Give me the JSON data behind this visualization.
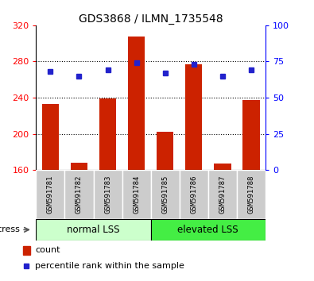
{
  "title": "GDS3868 / ILMN_1735548",
  "categories": [
    "GSM591781",
    "GSM591782",
    "GSM591783",
    "GSM591784",
    "GSM591785",
    "GSM591786",
    "GSM591787",
    "GSM591788"
  ],
  "bar_values": [
    233,
    168,
    239,
    308,
    202,
    277,
    167,
    237
  ],
  "percentile_values": [
    68,
    65,
    69,
    74,
    67,
    73,
    65,
    69
  ],
  "bar_bottom": 160,
  "ylim": [
    160,
    320
  ],
  "ylim_right": [
    0,
    100
  ],
  "yticks_left": [
    160,
    200,
    240,
    280,
    320
  ],
  "yticks_right": [
    0,
    25,
    50,
    75,
    100
  ],
  "grid_values": [
    200,
    240,
    280
  ],
  "bar_color": "#cc2200",
  "dot_color": "#2222cc",
  "group1_label": "normal LSS",
  "group2_label": "elevated LSS",
  "group1_color": "#ccffcc",
  "group2_color": "#44ee44",
  "xlabel_area_color": "#cccccc",
  "stress_label": "stress",
  "legend_count": "count",
  "legend_percentile": "percentile rank within the sample",
  "fig_bg": "#ffffff",
  "bar_width": 0.6
}
